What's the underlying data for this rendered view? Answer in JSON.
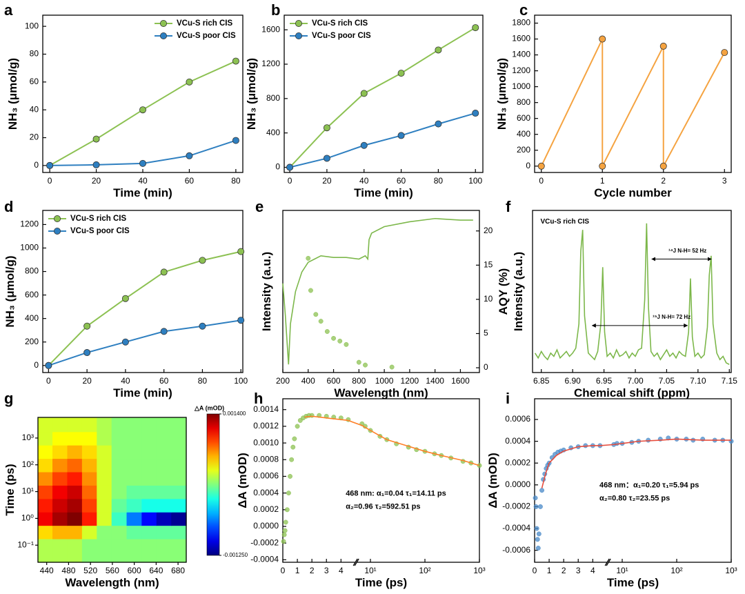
{
  "chart_data": [
    {
      "type": "line",
      "panel_label": "a",
      "xlabel": "Time (min)",
      "ylabel": "NH₃ (μmol/g)",
      "x": [
        0,
        20,
        40,
        60,
        80
      ],
      "series": [
        {
          "name": "VCu-S rich CIS",
          "color": "#8cc152",
          "values": [
            0,
            19,
            40,
            60,
            75
          ]
        },
        {
          "name": "VCu-S poor CIS",
          "color": "#2e7fc0",
          "values": [
            0,
            0.5,
            1.5,
            7,
            18
          ]
        }
      ],
      "xlim": [
        -3,
        83
      ],
      "ylim": [
        -5,
        108
      ],
      "xticks": [
        0,
        20,
        40,
        60,
        80
      ],
      "yticks": [
        0,
        20,
        40,
        60,
        80,
        100
      ],
      "legend": "upper right"
    },
    {
      "type": "line",
      "panel_label": "b",
      "xlabel": "Time (min)",
      "ylabel": "NH₃ (μmol/g)",
      "x": [
        0,
        20,
        40,
        60,
        80,
        100
      ],
      "series": [
        {
          "name": "VCu-S rich CIS",
          "color": "#8cc152",
          "values": [
            0,
            460,
            860,
            1095,
            1365,
            1625
          ]
        },
        {
          "name": "VCu-S poor CIS",
          "color": "#2e7fc0",
          "values": [
            0,
            105,
            255,
            370,
            505,
            630
          ]
        }
      ],
      "xlim": [
        -3,
        104
      ],
      "ylim": [
        -60,
        1770
      ],
      "xticks": [
        0,
        20,
        40,
        60,
        80,
        100
      ],
      "yticks": [
        0,
        400,
        800,
        1200,
        1600
      ],
      "legend": "upper left"
    },
    {
      "type": "line",
      "panel_label": "c",
      "xlabel": "Cycle number",
      "ylabel": "NH₃ (μmol/g)",
      "x": [
        0,
        1,
        1,
        2,
        2,
        3
      ],
      "series": [
        {
          "color": "#f5a340",
          "values": [
            0,
            1600,
            0,
            1510,
            0,
            1430
          ]
        }
      ],
      "xlim": [
        -0.11,
        3.11
      ],
      "ylim": [
        -80,
        1900
      ],
      "xticks": [
        0,
        1,
        2,
        3
      ],
      "yticks": [
        0,
        200,
        400,
        600,
        800,
        1000,
        1200,
        1400,
        1600,
        1800
      ]
    },
    {
      "type": "line",
      "panel_label": "d",
      "xlabel": "Time (min)",
      "ylabel": "NH₃ (μmol/g)",
      "x": [
        0,
        20,
        40,
        60,
        80,
        100
      ],
      "series": [
        {
          "name": "VCu-S rich CIS",
          "color": "#8cc152",
          "values": [
            0,
            335,
            570,
            795,
            895,
            970
          ]
        },
        {
          "name": "VCu-S poor CIS",
          "color": "#2e7fc0",
          "values": [
            0,
            110,
            200,
            290,
            335,
            385
          ]
        }
      ],
      "xlim": [
        -3,
        101
      ],
      "ylim": [
        -60,
        1320
      ],
      "xticks": [
        0,
        20,
        40,
        60,
        80,
        100
      ],
      "yticks": [
        0,
        200,
        400,
        600,
        800,
        1000,
        1200
      ],
      "legend": "upper left"
    },
    {
      "type": "line",
      "panel_label": "e",
      "xlabel": "Wavelength (nm)",
      "ylabel": "Intensity (a.u.)",
      "y2label": "AQY (%)",
      "series": [
        {
          "color": "#7cb74a",
          "style": "line",
          "x": [
            200,
            220,
            245,
            260,
            300,
            350,
            400,
            450,
            500,
            600,
            700,
            800,
            850,
            870,
            880,
            900,
            1000,
            1200,
            1400,
            1600,
            1700
          ],
          "values": [
            0.55,
            0.35,
            0.05,
            0.3,
            0.5,
            0.62,
            0.68,
            0.7,
            0.72,
            0.71,
            0.71,
            0.7,
            0.72,
            0.7,
            0.82,
            0.86,
            0.9,
            0.93,
            0.95,
            0.94,
            0.94
          ]
        },
        {
          "color": "#8cc152",
          "style": "marker",
          "axis": "y2",
          "x": [
            400,
            420,
            460,
            500,
            550,
            600,
            650,
            700,
            800,
            850,
            1060
          ],
          "values": [
            16,
            11.3,
            7.8,
            6.8,
            5.3,
            4.3,
            3.9,
            3.4,
            0.8,
            0.4,
            0.1
          ]
        }
      ],
      "xlim": [
        200,
        1750
      ],
      "ylim": [
        0,
        1
      ],
      "y2lim": [
        -0.7,
        23
      ],
      "xticks": [
        200,
        400,
        600,
        800,
        1000,
        1200,
        1400,
        1600
      ],
      "y2ticks": [
        0,
        5,
        10,
        15,
        20
      ]
    },
    {
      "type": "line",
      "panel_label": "f",
      "xlabel": "Chemical shift (ppm)",
      "ylabel": "Intensity (a.u.)",
      "series": [
        {
          "color": "#7cb74a",
          "style": "line",
          "x": [
            6.84,
            6.845,
            6.85,
            6.855,
            6.86,
            6.865,
            6.87,
            6.875,
            6.88,
            6.885,
            6.89,
            6.895,
            6.9,
            6.905,
            6.91,
            6.913,
            6.916,
            6.919,
            6.925,
            6.93,
            6.935,
            6.94,
            6.945,
            6.948,
            6.951,
            6.955,
            6.96,
            6.965,
            6.97,
            6.975,
            6.98,
            6.985,
            6.99,
            6.995,
            7.0,
            7.005,
            7.01,
            7.015,
            7.018,
            7.021,
            7.025,
            7.03,
            7.035,
            7.04,
            7.045,
            7.05,
            7.055,
            7.06,
            7.065,
            7.07,
            7.075,
            7.08,
            7.085,
            7.088,
            7.091,
            7.095,
            7.1,
            7.105,
            7.11,
            7.115,
            7.118,
            7.121,
            7.124,
            7.13,
            7.135,
            7.14,
            7.145,
            7.15
          ],
          "values": [
            0.12,
            0.09,
            0.13,
            0.1,
            0.08,
            0.12,
            0.1,
            0.14,
            0.09,
            0.11,
            0.13,
            0.1,
            0.12,
            0.15,
            0.3,
            0.75,
            0.88,
            0.35,
            0.12,
            0.1,
            0.08,
            0.13,
            0.3,
            0.65,
            0.25,
            0.1,
            0.12,
            0.09,
            0.14,
            0.1,
            0.11,
            0.13,
            0.09,
            0.12,
            0.1,
            0.14,
            0.15,
            0.45,
            0.92,
            0.4,
            0.13,
            0.1,
            0.12,
            0.08,
            0.11,
            0.14,
            0.1,
            0.12,
            0.09,
            0.13,
            0.11,
            0.1,
            0.25,
            0.58,
            0.22,
            0.1,
            0.12,
            0.09,
            0.11,
            0.28,
            0.6,
            0.72,
            0.3,
            0.12,
            0.08,
            0.1,
            0.06,
            0.05
          ]
        }
      ],
      "xlim": [
        6.836,
        7.153
      ],
      "ylim": [
        0,
        1
      ],
      "xticks": [
        6.85,
        {
          "value": 6.9,
          "label": "6.90"
        },
        6.95,
        {
          "value": 7.0,
          "label": "7.00"
        },
        7.05,
        {
          "value": 7.1,
          "label": "7.10"
        },
        7.15
      ],
      "annotations": [
        "VCu-S rich CIS",
        "¹⁴J N-H= 52 Hz",
        "¹⁵J N-H= 72 Hz"
      ]
    },
    {
      "type": "heatmap",
      "panel_label": "g",
      "xlabel": "Wavelength (nm)",
      "ylabel": "Time (ps)",
      "clabel": "△A (mOD)",
      "yscale": "log",
      "x": [
        437,
        464,
        491,
        518,
        545,
        572,
        600,
        627,
        654,
        681
      ],
      "y": [
        0.1,
        0.3,
        1,
        3,
        10,
        30,
        100,
        300,
        1000,
        3000
      ],
      "z": [
        [
          0.0002,
          0.0002,
          0.0002,
          0.0001,
          0.0001,
          0.0001,
          0.0001,
          0.0001,
          0.0001,
          0.0001
        ],
        [
          0.0005,
          0.0006,
          0.0006,
          0.0003,
          0.0001,
          0.0001,
          0.0,
          0.0,
          0.0,
          0.0
        ],
        [
          0.0011,
          0.0013,
          0.0014,
          0.001,
          0.0003,
          -0.0001,
          -0.0006,
          -0.0009,
          -0.0011,
          -0.0012
        ],
        [
          0.001,
          0.0012,
          0.0013,
          0.0009,
          0.0003,
          0.0,
          -0.0001,
          -0.0002,
          -0.0002,
          -0.0002
        ],
        [
          0.0009,
          0.0011,
          0.0012,
          0.0008,
          0.0003,
          0.0001,
          0.0,
          0.0,
          0.0,
          0.0
        ],
        [
          0.0007,
          0.0009,
          0.001,
          0.0007,
          0.0003,
          0.0001,
          0.0001,
          0.0001,
          0.0001,
          0.0001
        ],
        [
          0.0005,
          0.0007,
          0.0008,
          0.0006,
          0.0003,
          0.0001,
          0.0001,
          0.0001,
          0.0001,
          0.0001
        ],
        [
          0.0004,
          0.0005,
          0.0006,
          0.0005,
          0.0003,
          0.0001,
          0.0001,
          0.0001,
          0.0001,
          0.0001
        ],
        [
          0.0003,
          0.0004,
          0.0004,
          0.0004,
          0.0002,
          0.0001,
          0.0001,
          0.0001,
          0.0001,
          0.0001
        ],
        [
          0.0003,
          0.0003,
          0.0003,
          0.0003,
          0.0002,
          0.0001,
          0.0001,
          0.0001,
          0.0001,
          0.0001
        ]
      ],
      "xlim": [
        424,
        695
      ],
      "ylim": [
        0.023,
        5900
      ],
      "xticks": [
        440,
        480,
        520,
        560,
        600,
        640,
        680
      ],
      "yticks": [
        {
          "value": 0.1,
          "label": "10⁻¹"
        },
        {
          "value": 1,
          "label": "10⁰"
        },
        {
          "value": 10,
          "label": "10¹"
        },
        {
          "value": 100,
          "label": "10²"
        },
        {
          "value": 1000,
          "label": "10³"
        }
      ],
      "clim": [
        -0.00125,
        0.0014
      ],
      "cticks": [
        {
          "value": 0.0014,
          "label": "0.001400"
        },
        {
          "value": -0.00125,
          "label": "-0.001250"
        }
      ]
    },
    {
      "type": "line",
      "panel_label": "h",
      "xlabel": "Time (ps)",
      "ylabel": "ΔA (mOD)",
      "xbreak": [
        4.8,
        6.3
      ],
      "series": [
        {
          "color": "#8cc152",
          "style": "marker",
          "x": [
            0.05,
            0.1,
            0.15,
            0.2,
            0.3,
            0.4,
            0.5,
            0.6,
            0.7,
            0.8,
            1.0,
            1.2,
            1.4,
            1.6,
            1.8,
            2.0,
            2.5,
            3,
            3.5,
            4,
            4.5,
            7,
            8,
            10,
            15,
            20,
            30,
            50,
            70,
            100,
            150,
            200,
            300,
            500,
            700,
            1000
          ],
          "values": [
            -0.00018,
            -0.0001,
            -5e-05,
            5e-05,
            0.0002,
            0.0004,
            0.0006,
            0.0008,
            0.00095,
            0.00105,
            0.0012,
            0.00127,
            0.0013,
            0.00132,
            0.00133,
            0.00133,
            0.00133,
            0.00132,
            0.00131,
            0.0013,
            0.00128,
            0.00123,
            0.0012,
            0.00115,
            0.00108,
            0.00104,
            0.00099,
            0.00095,
            0.00092,
            0.0009,
            0.00087,
            0.00085,
            0.00082,
            0.00078,
            0.00076,
            0.00073
          ]
        },
        {
          "color": "#ff7f27",
          "style": "line",
          "x": [
            1.5,
            2,
            2.5,
            3,
            3.5,
            4,
            4.5,
            7,
            10,
            20,
            50,
            100,
            200,
            500,
            1000
          ],
          "values": [
            0.00131,
            0.00132,
            0.00131,
            0.0013,
            0.00129,
            0.00128,
            0.00127,
            0.00121,
            0.00115,
            0.00104,
            0.00096,
            0.0009,
            0.00085,
            0.00079,
            0.00073
          ]
        }
      ],
      "xlim": [
        0,
        1000
      ],
      "ylim": [
        -0.00043,
        0.00153
      ],
      "xticks": [
        0,
        1,
        2,
        3,
        4,
        {
          "value": 10,
          "label": "10¹"
        },
        {
          "value": 100,
          "label": "10²"
        },
        {
          "value": 1000,
          "label": "10³"
        }
      ],
      "yticks": [
        -0.0004,
        -0.0002,
        {
          "value": 0,
          "label": "0.0000"
        },
        0.0002,
        0.0004,
        0.0006,
        0.0008,
        {
          "value": 0.001,
          "label": "0.0010"
        },
        0.0012,
        0.0014
      ],
      "annotations": [
        "468 nm: α₁=0.04 τ₁=14.11 ps",
        "α₂=0.96 τ₂=592.51 ps"
      ]
    },
    {
      "type": "line",
      "panel_label": "i",
      "xlabel": "Time (ps)",
      "ylabel": "ΔA (mOD)",
      "xbreak": [
        4.8,
        6.3
      ],
      "series": [
        {
          "color": "#4a8ac8",
          "style": "marker",
          "x": [
            0.05,
            0.1,
            0.15,
            0.2,
            0.25,
            0.3,
            0.4,
            0.5,
            0.6,
            0.7,
            0.8,
            0.9,
            1.0,
            1.2,
            1.4,
            1.6,
            1.8,
            2.0,
            2.5,
            3,
            3.5,
            4,
            4.5,
            7,
            8,
            10,
            15,
            20,
            30,
            50,
            70,
            100,
            150,
            200,
            300,
            500,
            700,
            1000
          ],
          "values": [
            -0.00012,
            -0.0002,
            -0.0004,
            -0.0005,
            -0.00058,
            -0.00045,
            -0.0002,
            -5e-05,
            5e-05,
            0.0001,
            0.00015,
            0.00018,
            0.0002,
            0.00025,
            0.00028,
            0.0003,
            0.00031,
            0.00032,
            0.00034,
            0.00035,
            0.00036,
            0.00036,
            0.00036,
            0.00037,
            0.00038,
            0.00038,
            0.00039,
            0.0004,
            0.00041,
            0.00042,
            0.00043,
            0.00042,
            0.00042,
            0.00041,
            0.00042,
            0.00041,
            0.00041,
            0.0004
          ]
        },
        {
          "color": "#e74c3c",
          "style": "line",
          "x": [
            0.5,
            0.75,
            1,
            1.5,
            2,
            3,
            4,
            4.5,
            7,
            10,
            20,
            50,
            100,
            300,
            1000
          ],
          "values": [
            -3e-05,
            0.0001,
            0.0002,
            0.00027,
            0.00031,
            0.00035,
            0.00036,
            0.00036,
            0.00037,
            0.00038,
            0.0004,
            0.00041,
            0.00042,
            0.00041,
            0.00041
          ]
        }
      ],
      "xlim": [
        0,
        1000
      ],
      "ylim": [
        -0.00071,
        0.00079
      ],
      "xticks": [
        0,
        1,
        2,
        3,
        4,
        {
          "value": 10,
          "label": "10¹"
        },
        {
          "value": 100,
          "label": "10²"
        },
        {
          "value": 1000,
          "label": "10³"
        }
      ],
      "yticks": [
        -0.0006,
        -0.0004,
        -0.0002,
        {
          "value": 0,
          "label": "0.0000"
        },
        0.0002,
        0.0004,
        0.0006
      ],
      "annotations": [
        "468 nm：α₁=0.20 τ₁=5.94 ps",
        "α₂=0.80 τ₂=23.55 ps"
      ]
    }
  ]
}
